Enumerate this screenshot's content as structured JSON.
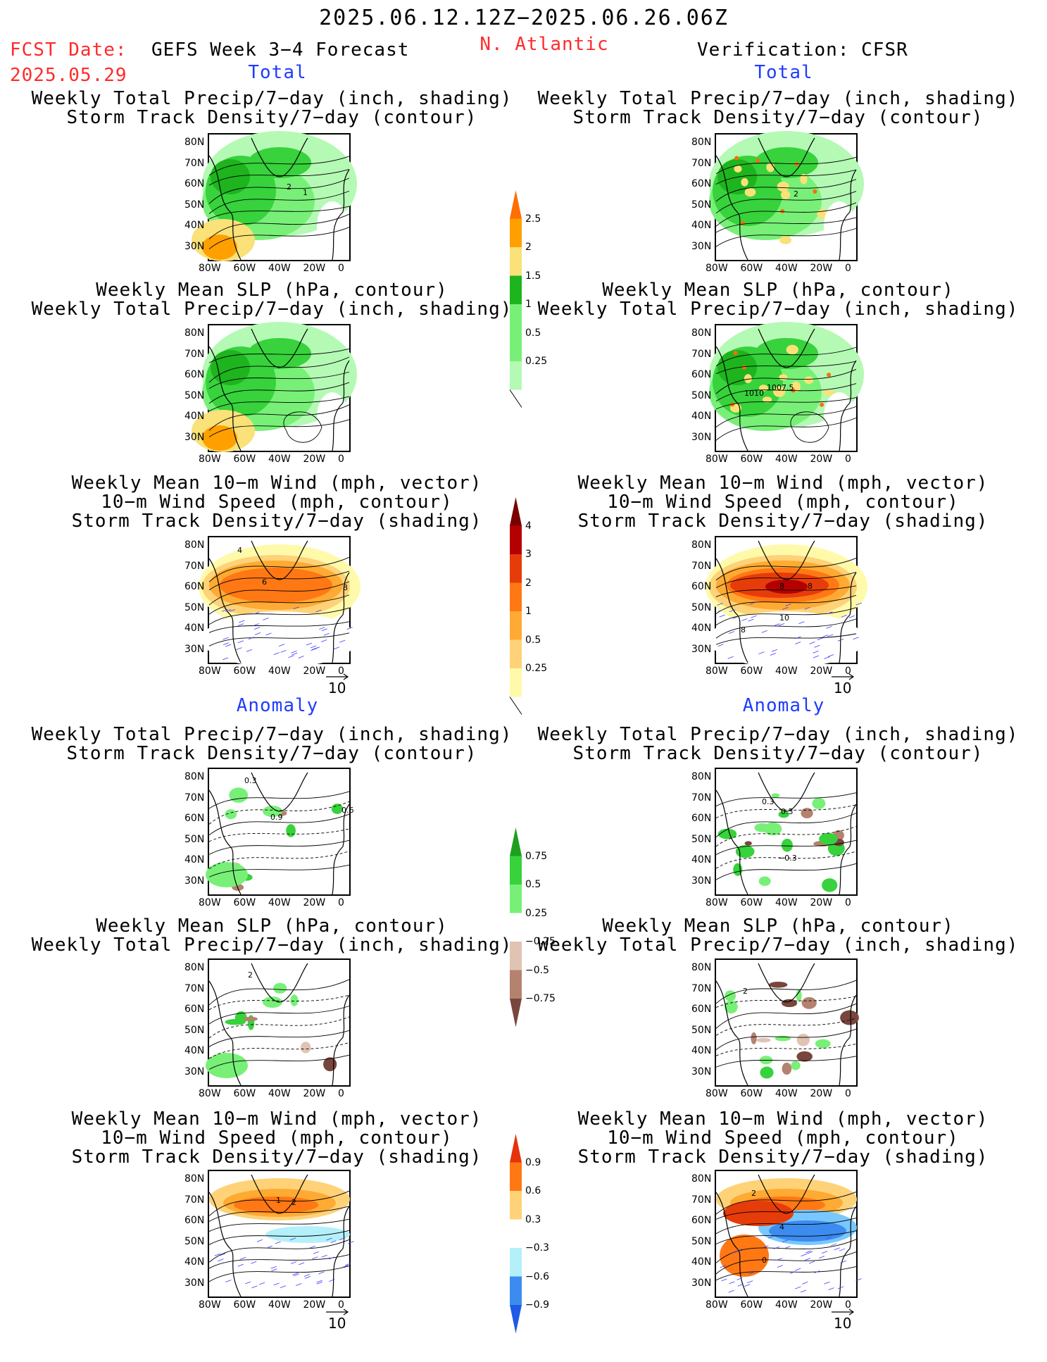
{
  "header": {
    "valid_period": "2025.06.12.12Z−2025.06.26.06Z",
    "fcst_label": "FCST Date:",
    "fcst_date": "2025.05.29",
    "model_title": "GEFS Week 3−4 Forecast",
    "region": "N. Atlantic",
    "verification": "Verification: CFSR"
  },
  "sections": {
    "total_label": "Total",
    "anomaly_label": "Anomaly"
  },
  "panel_titles": {
    "precip_storm": [
      "Weekly Total Precip/7−day (inch, shading)",
      "Storm Track Density/7−day (contour)"
    ],
    "slp_precip": [
      "Weekly Mean SLP (hPa, contour)",
      "Weekly Total Precip/7−day (inch, shading)"
    ],
    "wind_storm": [
      "Weekly Mean 10−m Wind (mph, vector)",
      "10−m Wind Speed (mph, contour)",
      "Storm Track Density/7−day (shading)"
    ]
  },
  "axes": {
    "lat_ticks": [
      "80N",
      "70N",
      "60N",
      "50N",
      "40N",
      "30N"
    ],
    "lon_ticks": [
      "80W",
      "60W",
      "40W",
      "20W",
      "0"
    ]
  },
  "vector_ref": "10",
  "colorbars": {
    "precip_total": [
      "2.5",
      "2",
      "1.5",
      "1",
      "0.5",
      "0.25"
    ],
    "storm_total": [
      "4",
      "3",
      "2",
      "1",
      "0.5",
      "0.25"
    ],
    "precip_anom": [
      "0.75",
      "0.5",
      "0.25",
      "−0.25",
      "−0.5",
      "−0.75"
    ],
    "storm_anom": [
      "0.9",
      "0.6",
      "0.3",
      "−0.3",
      "−0.6",
      "−0.9"
    ]
  },
  "contour_labels": {
    "t1_fc": [
      "2",
      "1"
    ],
    "t1_ob": [
      "2"
    ],
    "t2_ob": [
      "1010",
      "1007.5"
    ],
    "t3_fc": [
      "4",
      "6",
      "8"
    ],
    "t3_ob": [
      "8",
      "8",
      "10",
      "8"
    ],
    "a1_fc": [
      "0.3",
      "0.9",
      "0.6"
    ],
    "a1_ob": [
      "0.3",
      "0.3",
      "−0.3"
    ],
    "a2_fc": [
      "2"
    ],
    "a2_ob": [
      "2"
    ],
    "a3_fc": [
      "1",
      "2"
    ],
    "a3_ob": [
      "2",
      "4",
      "0"
    ]
  },
  "colors": {
    "precip": [
      "#b4fab4",
      "#78f078",
      "#37d23c",
      "#1eb41e",
      "#fae178",
      "#ffa000",
      "#ff6e00"
    ],
    "storm": [
      "#fffaaa",
      "#ffd278",
      "#ffaa32",
      "#ff7814",
      "#e63c0a",
      "#b40000"
    ],
    "anom_brown": [
      "#e1c3b4",
      "#b4826e",
      "#78463c"
    ],
    "anom_blue": [
      "#b4f0fa",
      "#78c8ff",
      "#3c8cf0",
      "#1e5ae6"
    ],
    "title_red": "#ff2a2a",
    "label_blue": "#1f3cff"
  }
}
